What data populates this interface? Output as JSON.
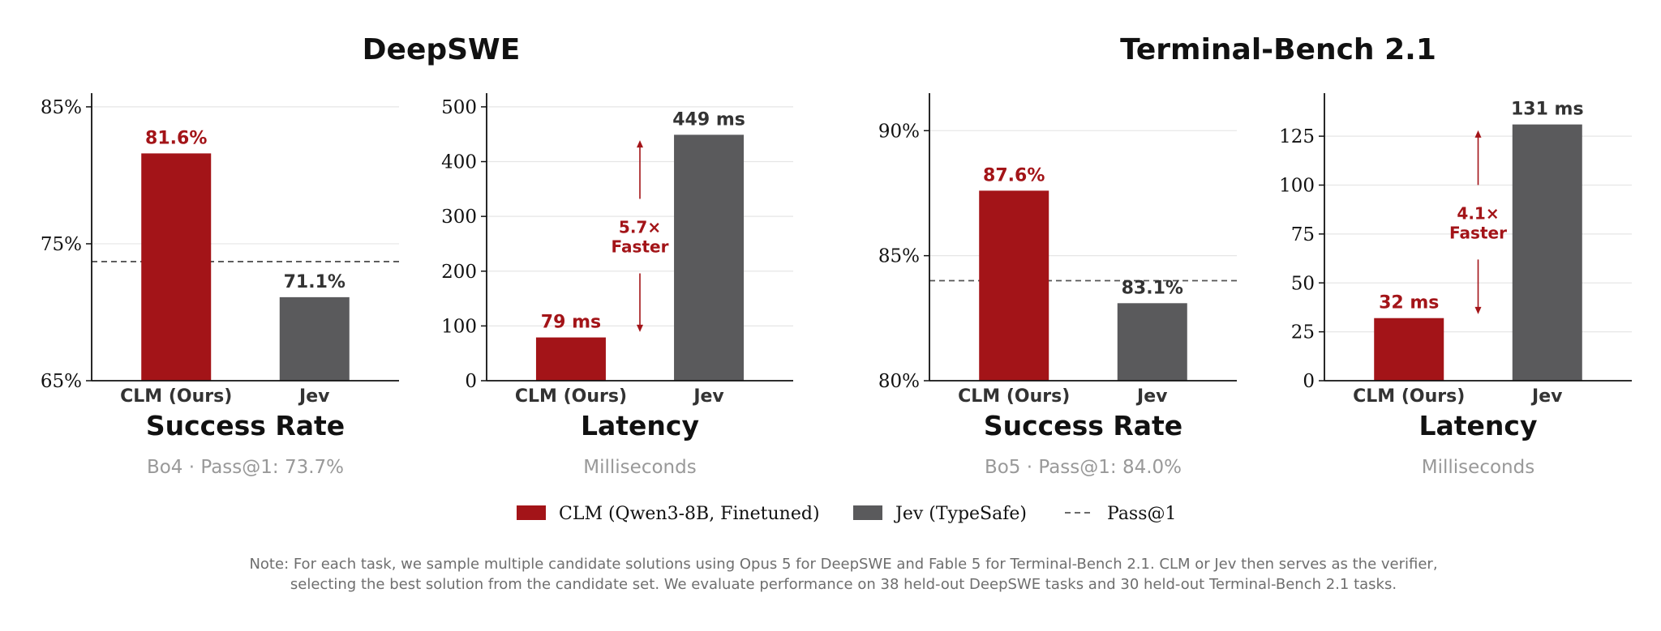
{
  "colors": {
    "clm": "#a31418",
    "jev": "#5a5a5c",
    "text_dark": "#111111",
    "text_gray": "#999999",
    "note_gray": "#6e6e6e",
    "grid": "#e6e6e6",
    "passline": "#555555"
  },
  "groups": [
    {
      "title": "DeepSWE"
    },
    {
      "title": "Terminal-Bench 2.1"
    }
  ],
  "chart_data": [
    {
      "type": "bar",
      "group": "DeepSWE",
      "title": "Success Rate",
      "subtitle": "Bo4 · Pass@1: 73.7%",
      "categories": [
        "CLM (Ours)",
        "Jev"
      ],
      "values": [
        81.6,
        71.1
      ],
      "value_labels": [
        "81.6%",
        "71.1%"
      ],
      "ylim": [
        65,
        86
      ],
      "yticks": [
        65,
        75,
        85
      ],
      "ytick_labels": [
        "65%",
        "75%",
        "85%"
      ],
      "reference_line": {
        "name": "Pass@1",
        "value": 73.7
      }
    },
    {
      "type": "bar",
      "group": "DeepSWE",
      "title": "Latency",
      "subtitle": "Milliseconds",
      "categories": [
        "CLM (Ours)",
        "Jev"
      ],
      "values": [
        79,
        449
      ],
      "value_labels": [
        "79 ms",
        "449 ms"
      ],
      "ylim": [
        0,
        525
      ],
      "yticks": [
        0,
        100,
        200,
        300,
        400,
        500
      ],
      "ytick_labels": [
        "0",
        "100",
        "200",
        "300",
        "400",
        "500"
      ],
      "annotation": {
        "lines": [
          "5.7×",
          "Faster"
        ],
        "from": 89,
        "to": 439
      }
    },
    {
      "type": "bar",
      "group": "Terminal-Bench 2.1",
      "title": "Success Rate",
      "subtitle": "Bo5 · Pass@1: 84.0%",
      "categories": [
        "CLM (Ours)",
        "Jev"
      ],
      "values": [
        87.6,
        83.1
      ],
      "value_labels": [
        "87.6%",
        "83.1%"
      ],
      "ylim": [
        80,
        91.5
      ],
      "yticks": [
        80,
        85,
        90
      ],
      "ytick_labels": [
        "80%",
        "85%",
        "90%"
      ],
      "reference_line": {
        "name": "Pass@1",
        "value": 84.0
      }
    },
    {
      "type": "bar",
      "group": "Terminal-Bench 2.1",
      "title": "Latency",
      "subtitle": "Milliseconds",
      "categories": [
        "CLM (Ours)",
        "Jev"
      ],
      "values": [
        32,
        131
      ],
      "value_labels": [
        "32 ms",
        "131 ms"
      ],
      "ylim": [
        0,
        147
      ],
      "yticks": [
        0,
        25,
        50,
        75,
        100,
        125
      ],
      "ytick_labels": [
        "0",
        "25",
        "50",
        "75",
        "100",
        "125"
      ],
      "annotation": {
        "lines": [
          "4.1×",
          "Faster"
        ],
        "from": 34,
        "to": 128
      }
    }
  ],
  "legend": [
    {
      "type": "patch",
      "key": "clm",
      "label": "CLM (Qwen3-8B, Finetuned)"
    },
    {
      "type": "patch",
      "key": "jev",
      "label": "Jev (TypeSafe)"
    },
    {
      "type": "dashed",
      "key": "passline",
      "label": "Pass@1"
    }
  ],
  "note": [
    "Note: For each task, we sample multiple candidate solutions using Opus 5 for DeepSWE and Fable 5 for Terminal-Bench 2.1. CLM or Jev then serves as the verifier,",
    "selecting the best solution from the candidate set. We evaluate performance on 38 held-out DeepSWE tasks and 30 held-out Terminal-Bench 2.1 tasks."
  ]
}
